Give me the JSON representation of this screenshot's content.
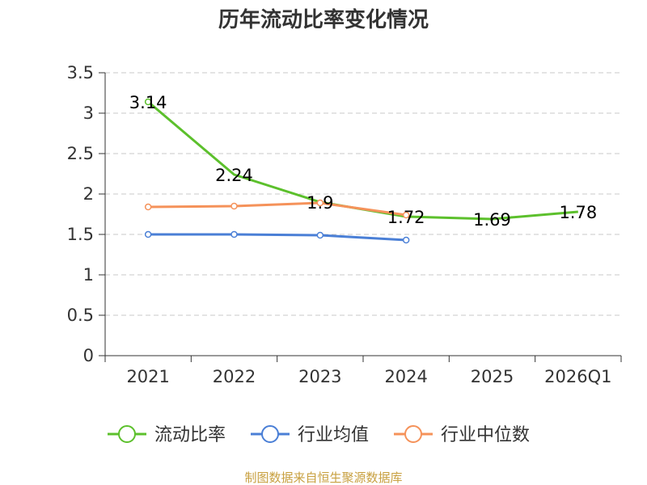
{
  "chart_data": {
    "type": "line",
    "title": "历年流动比率变化情况",
    "categories": [
      "2021",
      "2022",
      "2023",
      "2024",
      "2025",
      "2026Q1"
    ],
    "ylim": [
      0,
      3.5
    ],
    "yticks": [
      "0",
      "0.5",
      "1",
      "1.5",
      "2",
      "2.5",
      "3",
      "3.5"
    ],
    "grid": true,
    "legend_position": "bottom",
    "series": [
      {
        "name": "流动比率",
        "color": "#5cc02c",
        "values": [
          3.14,
          2.24,
          1.9,
          1.72,
          1.69,
          1.78
        ],
        "labels": [
          "3.14",
          "2.24",
          "1.9",
          "1.72",
          "1.69",
          "1.78"
        ],
        "markers": [
          true,
          false,
          false,
          false,
          false,
          false
        ]
      },
      {
        "name": "行业均值",
        "color": "#4a7fd6",
        "values": [
          1.5,
          1.5,
          1.49,
          1.43,
          null,
          null
        ],
        "markers": [
          true,
          true,
          true,
          true,
          false,
          false
        ]
      },
      {
        "name": "行业中位数",
        "color": "#f5925a",
        "values": [
          1.84,
          1.85,
          1.89,
          1.74,
          null,
          null
        ],
        "markers": [
          true,
          true,
          true,
          true,
          false,
          false
        ]
      }
    ]
  },
  "source": "制图数据来自恒生聚源数据库"
}
